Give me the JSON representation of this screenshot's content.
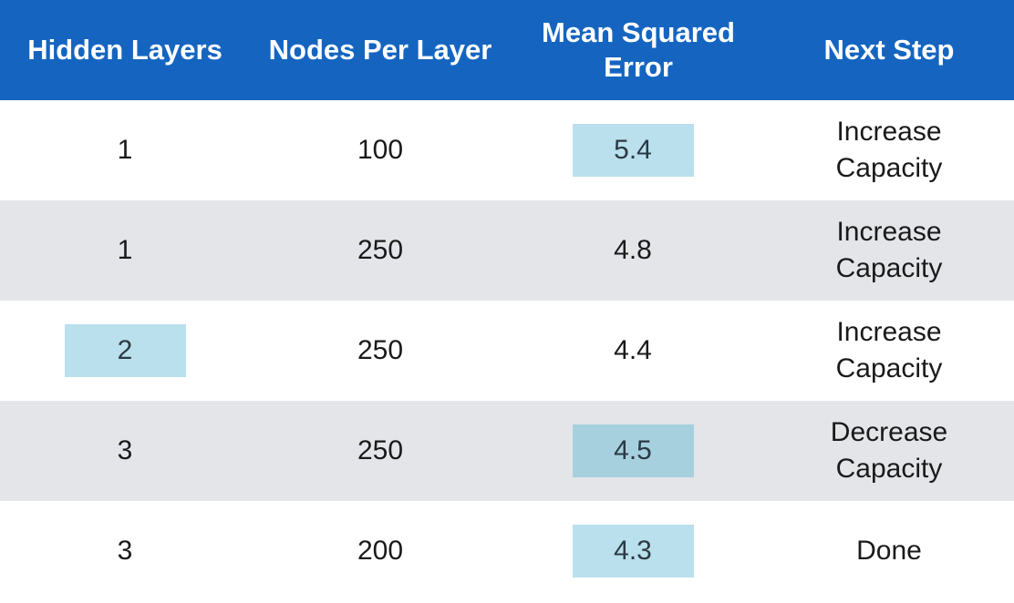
{
  "columns": [
    "Hidden Layers",
    "Nodes Per Layer",
    "Mean Squared Error",
    "Next Step"
  ],
  "rows": [
    {
      "hidden_layers": "1",
      "nodes_per_layer": "100",
      "mse": "5.4",
      "next_step": "Increase Capacity"
    },
    {
      "hidden_layers": "1",
      "nodes_per_layer": "250",
      "mse": "4.8",
      "next_step": "Increase Capacity"
    },
    {
      "hidden_layers": "2",
      "nodes_per_layer": "250",
      "mse": "4.4",
      "next_step": "Increase Capacity"
    },
    {
      "hidden_layers": "3",
      "nodes_per_layer": "250",
      "mse": "4.5",
      "next_step": "Decrease Capacity"
    },
    {
      "hidden_layers": "3",
      "nodes_per_layer": "200",
      "mse": "4.3",
      "next_step": "Done"
    }
  ],
  "colors": {
    "header_bg": "#1565c0",
    "alt_row_bg": "#e4e5e9",
    "highlight_light": "#b9e0ec",
    "highlight_dark": "#a6d0de"
  }
}
